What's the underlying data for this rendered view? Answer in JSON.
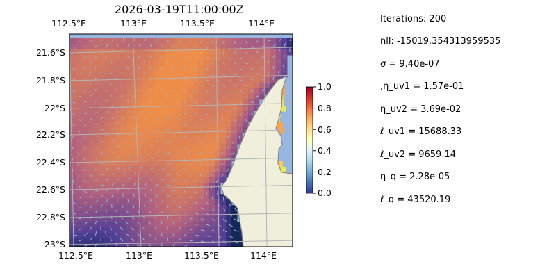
{
  "chart_data": {
    "type": "heatmap",
    "title": "2026-03-19T11:00:00Z",
    "x_tick_labels_top": [
      "112.5°E",
      "113°E",
      "113.5°E",
      "114°E"
    ],
    "x_tick_labels_bottom": [
      "112.5°E",
      "113°E",
      "113.5°E",
      "114°E"
    ],
    "y_tick_labels": [
      "21.6°S",
      "21.8°S",
      "22°S",
      "22.2°S",
      "22.4°S",
      "22.6°S",
      "22.8°S",
      "23°S"
    ],
    "xlim": [
      112.5,
      114.2
    ],
    "ylim": [
      -23.0,
      -21.5
    ],
    "grid": true,
    "colorbar": {
      "range": [
        0.0,
        1.0
      ],
      "tick_labels": [
        "0.0",
        "0.2",
        "0.4",
        "0.6",
        "0.8",
        "1.0"
      ]
    },
    "colors": {
      "ocean": "#97b6e0",
      "land": "#efefdb",
      "coast": "#888888",
      "grid": "#b5b5b5"
    }
  },
  "info": {
    "lines": [
      "Iterations: 200",
      "nll: -15019.354313959535",
      "σ = 9.40e-07",
      ",η_uv1 = 1.57e-01",
      "η_uv2 = 3.69e-02",
      "ℓ_uv1 = 15688.33",
      "ℓ_uv2 = 9659.14",
      "η_q = 2.28e-05",
      "ℓ_q = 43520.19"
    ]
  }
}
